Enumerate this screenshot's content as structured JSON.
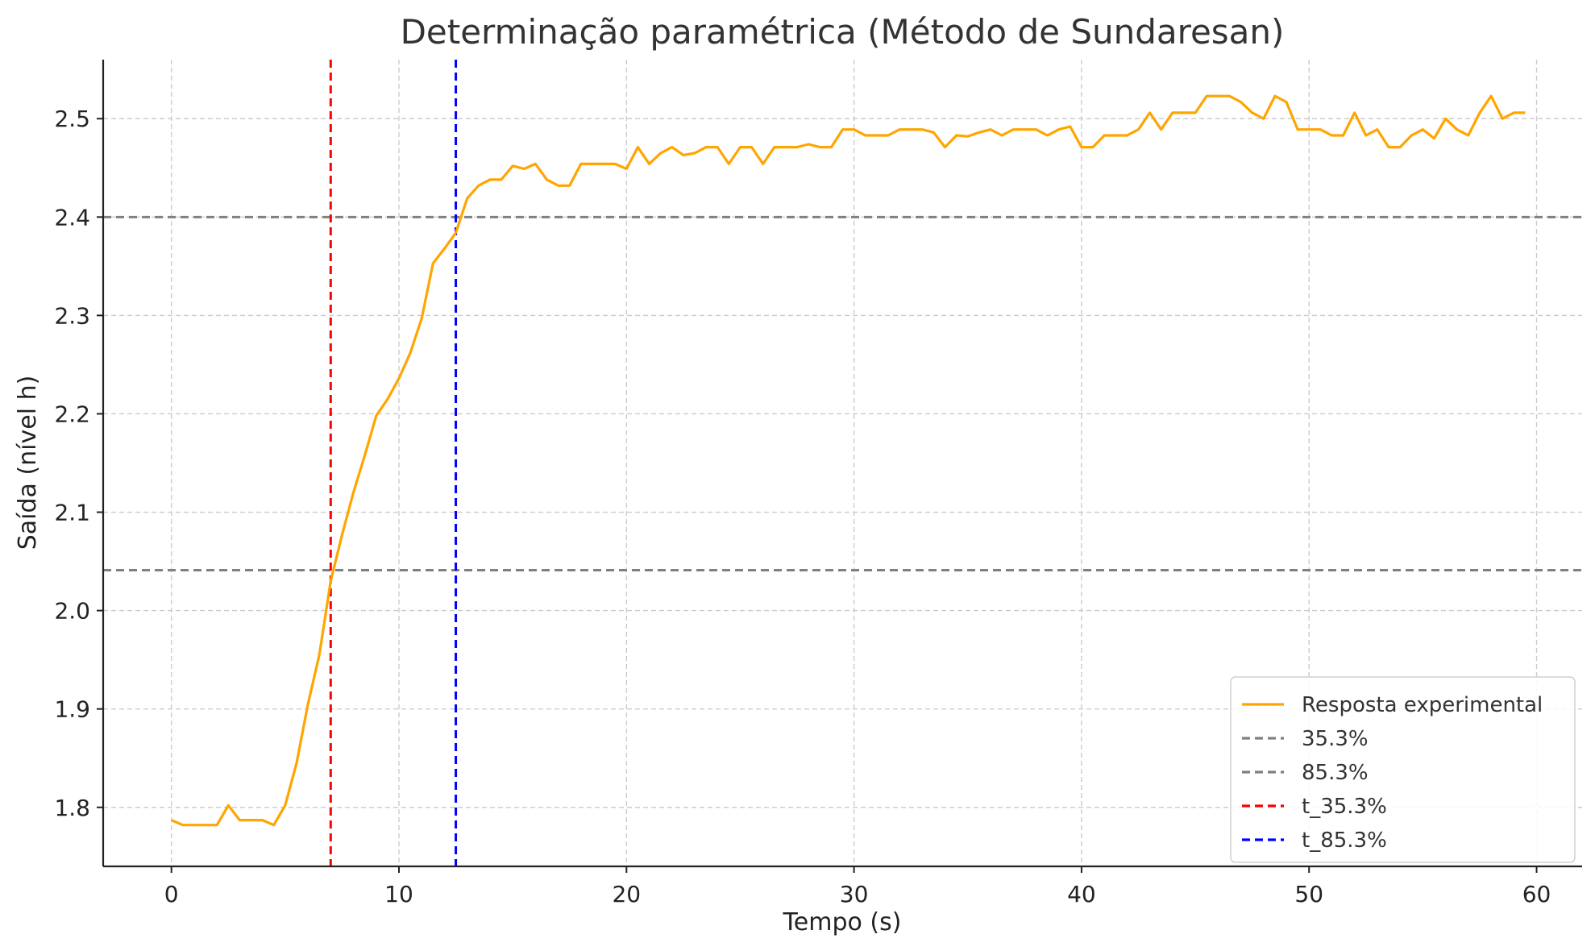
{
  "chart_data": {
    "type": "line",
    "title": "Determinação paramétrica (Método de Sundaresan)",
    "xlabel": "Tempo (s)",
    "ylabel": "Saída (nível h)",
    "xlim": [
      -3,
      62
    ],
    "ylim": [
      1.74,
      2.56
    ],
    "xticks": [
      0,
      10,
      20,
      30,
      40,
      50,
      60
    ],
    "yticks": [
      1.8,
      1.9,
      2.0,
      2.1,
      2.2,
      2.3,
      2.4,
      2.5
    ],
    "grid": true,
    "legend_position": "bottom-right",
    "series": [
      {
        "name": "Resposta experimental",
        "color": "#FFA500",
        "style": "solid",
        "x": [
          0,
          0.5,
          1,
          1.5,
          2,
          2.5,
          3,
          3.5,
          4,
          4.5,
          5,
          5.5,
          6,
          6.5,
          7,
          7.5,
          8,
          8.5,
          9,
          9.5,
          10,
          10.5,
          11,
          11.5,
          12,
          12.5,
          13,
          13.5,
          14,
          14.5,
          15,
          15.5,
          16,
          16.5,
          17,
          17.5,
          18,
          18.5,
          19,
          19.5,
          20,
          20.5,
          21,
          21.5,
          22,
          22.5,
          23,
          23.5,
          24,
          24.5,
          25,
          25.5,
          26,
          26.5,
          27,
          27.5,
          28,
          28.5,
          29,
          29.5,
          30,
          30.5,
          31,
          31.5,
          32,
          32.5,
          33,
          33.5,
          34,
          34.5,
          35,
          35.5,
          36,
          36.5,
          37,
          37.5,
          38,
          38.5,
          39,
          39.5,
          40,
          40.5,
          41,
          41.5,
          42,
          42.5,
          43,
          43.5,
          44,
          44.5,
          45,
          45.5,
          46,
          46.5,
          47,
          47.5,
          48,
          48.5,
          49,
          49.5,
          50,
          50.5,
          51,
          51.5,
          52,
          52.5,
          53,
          53.5,
          54,
          54.5,
          55,
          55.5,
          56,
          56.5,
          57,
          57.5,
          58,
          58.5,
          59,
          59.5
        ],
        "y": [
          1.787,
          1.782,
          1.782,
          1.782,
          1.782,
          1.802,
          1.787,
          1.787,
          1.787,
          1.782,
          1.802,
          1.845,
          1.905,
          1.955,
          2.03,
          2.077,
          2.12,
          2.158,
          2.198,
          2.215,
          2.236,
          2.262,
          2.297,
          2.353,
          2.368,
          2.384,
          2.419,
          2.432,
          2.438,
          2.438,
          2.452,
          2.449,
          2.454,
          2.438,
          2.432,
          2.432,
          2.454,
          2.454,
          2.454,
          2.454,
          2.449,
          2.471,
          2.454,
          2.465,
          2.471,
          2.463,
          2.465,
          2.471,
          2.471,
          2.454,
          2.471,
          2.471,
          2.454,
          2.471,
          2.471,
          2.471,
          2.474,
          2.471,
          2.471,
          2.489,
          2.489,
          2.483,
          2.483,
          2.483,
          2.489,
          2.489,
          2.489,
          2.486,
          2.471,
          2.483,
          2.482,
          2.486,
          2.489,
          2.483,
          2.489,
          2.489,
          2.489,
          2.483,
          2.489,
          2.492,
          2.471,
          2.471,
          2.483,
          2.483,
          2.483,
          2.489,
          2.506,
          2.489,
          2.506,
          2.506,
          2.506,
          2.523,
          2.523,
          2.523,
          2.517,
          2.506,
          2.5,
          2.523,
          2.517,
          2.489,
          2.489,
          2.489,
          2.483,
          2.483,
          2.506,
          2.483,
          2.489,
          2.471,
          2.471,
          2.483,
          2.489,
          2.48,
          2.5,
          2.489,
          2.483,
          2.506,
          2.523,
          2.5,
          2.506,
          2.506
        ]
      },
      {
        "name": "35.3%",
        "color": "#808080",
        "style": "dashed",
        "orientation": "horizontal",
        "value": 2.041
      },
      {
        "name": "85.3%",
        "color": "#808080",
        "style": "dashed",
        "orientation": "horizontal",
        "value": 2.4
      },
      {
        "name": "t_35.3%",
        "color": "#FF0000",
        "style": "dashed",
        "orientation": "vertical",
        "value": 7.0
      },
      {
        "name": "t_85.3%",
        "color": "#0000FF",
        "style": "dashed",
        "orientation": "vertical",
        "value": 12.5
      }
    ]
  }
}
